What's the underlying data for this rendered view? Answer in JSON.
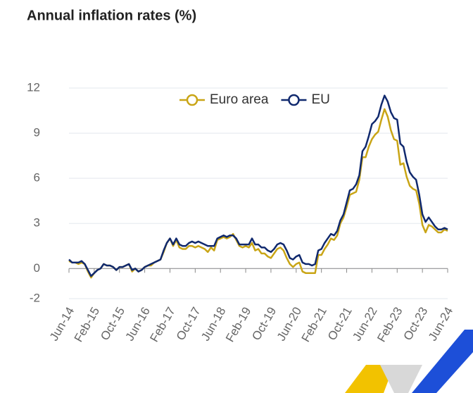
{
  "chart_data": {
    "type": "line",
    "title": "Annual inflation rates (%)",
    "categories": [
      "Jun-14",
      null,
      null,
      null,
      null,
      null,
      null,
      null,
      "Feb-15",
      null,
      null,
      null,
      null,
      null,
      null,
      null,
      "Oct-15",
      null,
      null,
      null,
      null,
      null,
      null,
      null,
      "Jun-16",
      null,
      null,
      null,
      null,
      null,
      null,
      null,
      "Feb-17",
      null,
      null,
      null,
      null,
      null,
      null,
      null,
      "Oct-17",
      null,
      null,
      null,
      null,
      null,
      null,
      null,
      "Jun-18",
      null,
      null,
      null,
      null,
      null,
      null,
      null,
      "Feb-19",
      null,
      null,
      null,
      null,
      null,
      null,
      null,
      "Oct-19",
      null,
      null,
      null,
      null,
      null,
      null,
      null,
      "Jun-20",
      null,
      null,
      null,
      null,
      null,
      null,
      null,
      "Feb-21",
      null,
      null,
      null,
      null,
      null,
      null,
      null,
      "Oct-21",
      null,
      null,
      null,
      null,
      null,
      null,
      null,
      "Jun-22",
      null,
      null,
      null,
      null,
      null,
      null,
      null,
      "Feb-23",
      null,
      null,
      null,
      null,
      null,
      null,
      null,
      "Oct-23",
      null,
      null,
      null,
      null,
      null,
      null,
      null,
      "Jun-24"
    ],
    "series": [
      {
        "name": "Euro area",
        "color": "#c9a516",
        "values": [
          0.5,
          0.4,
          0.4,
          0.3,
          0.4,
          0.3,
          -0.2,
          -0.6,
          -0.3,
          -0.1,
          0.0,
          0.3,
          0.2,
          0.2,
          0.1,
          -0.1,
          0.1,
          0.1,
          0.2,
          0.3,
          -0.2,
          0.0,
          -0.2,
          -0.1,
          0.1,
          0.2,
          0.2,
          0.4,
          0.5,
          0.6,
          1.1,
          1.7,
          2.0,
          1.5,
          1.9,
          1.4,
          1.3,
          1.3,
          1.5,
          1.5,
          1.4,
          1.5,
          1.4,
          1.3,
          1.1,
          1.4,
          1.2,
          1.9,
          2.0,
          2.1,
          2.0,
          2.1,
          2.3,
          1.9,
          1.5,
          1.4,
          1.5,
          1.4,
          1.7,
          1.2,
          1.3,
          1.0,
          1.0,
          0.8,
          0.7,
          1.0,
          1.3,
          1.4,
          1.2,
          0.7,
          0.3,
          0.1,
          0.3,
          0.4,
          -0.2,
          -0.3,
          -0.3,
          -0.3,
          -0.3,
          0.9,
          0.9,
          1.3,
          1.6,
          2.0,
          1.9,
          2.2,
          3.0,
          3.4,
          4.1,
          4.9,
          5.0,
          5.1,
          5.9,
          7.4,
          7.4,
          8.1,
          8.6,
          8.9,
          9.1,
          9.9,
          10.6,
          10.1,
          9.2,
          8.6,
          8.5,
          6.9,
          7.0,
          6.1,
          5.5,
          5.3,
          5.2,
          4.3,
          2.9,
          2.4,
          2.9,
          2.8,
          2.6,
          2.4,
          2.4,
          2.6,
          2.5
        ]
      },
      {
        "name": "EU",
        "color": "#10296e",
        "values": [
          0.6,
          0.4,
          0.4,
          0.4,
          0.5,
          0.3,
          -0.1,
          -0.5,
          -0.3,
          -0.1,
          0.0,
          0.3,
          0.2,
          0.2,
          0.1,
          -0.1,
          0.1,
          0.1,
          0.2,
          0.3,
          -0.1,
          0.0,
          -0.2,
          -0.1,
          0.1,
          0.2,
          0.3,
          0.4,
          0.5,
          0.6,
          1.2,
          1.7,
          2.0,
          1.6,
          2.0,
          1.6,
          1.5,
          1.5,
          1.7,
          1.8,
          1.7,
          1.8,
          1.7,
          1.6,
          1.5,
          1.5,
          1.5,
          2.0,
          2.1,
          2.2,
          2.1,
          2.2,
          2.2,
          2.0,
          1.6,
          1.6,
          1.6,
          1.6,
          2.0,
          1.6,
          1.6,
          1.4,
          1.4,
          1.2,
          1.1,
          1.3,
          1.6,
          1.7,
          1.6,
          1.2,
          0.7,
          0.6,
          0.8,
          0.9,
          0.4,
          0.3,
          0.3,
          0.2,
          0.3,
          1.2,
          1.3,
          1.7,
          2.0,
          2.3,
          2.2,
          2.5,
          3.2,
          3.6,
          4.4,
          5.2,
          5.3,
          5.6,
          6.2,
          7.8,
          8.1,
          8.8,
          9.6,
          9.8,
          10.1,
          10.9,
          11.5,
          11.1,
          10.4,
          10.0,
          9.9,
          8.3,
          8.1,
          7.1,
          6.4,
          6.1,
          5.9,
          4.9,
          3.6,
          3.1,
          3.4,
          3.1,
          2.8,
          2.6,
          2.6,
          2.7,
          2.6
        ]
      }
    ],
    "ylim": [
      -2,
      12
    ],
    "yticks": [
      -2,
      0,
      3,
      6,
      9,
      12
    ],
    "grid": true,
    "legend": "top"
  }
}
